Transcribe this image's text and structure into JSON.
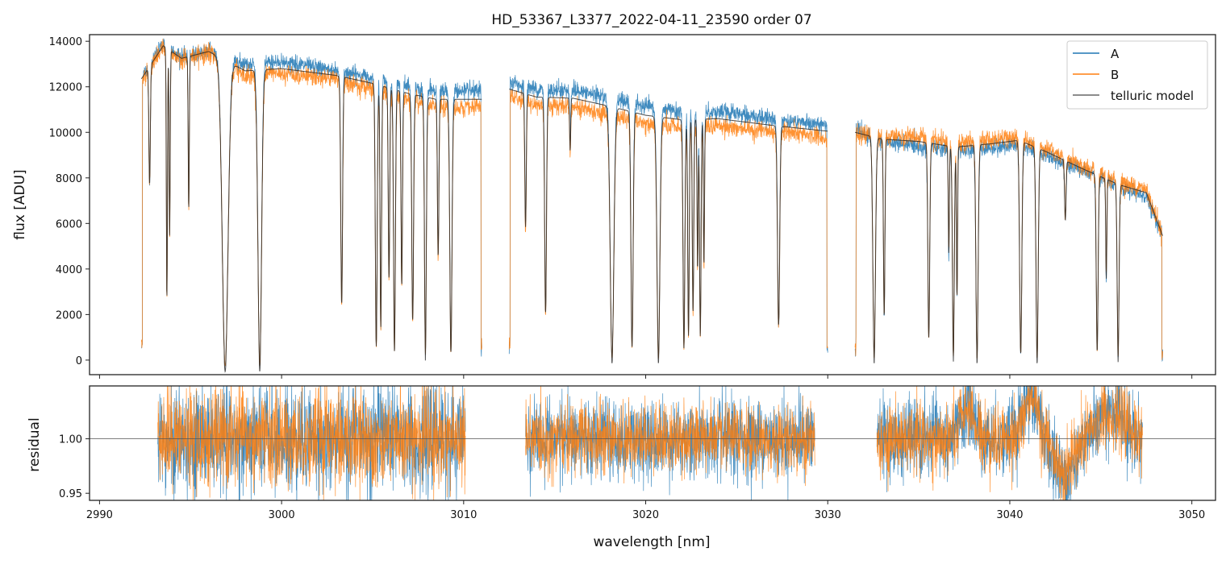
{
  "chart_data": [
    {
      "type": "line",
      "title": "HD_53367_L3377_2022-04-11_23590  order 07",
      "xlabel": "",
      "ylabel": "flux [ADU]",
      "xlim": [
        2989.45,
        3051.3
      ],
      "ylim": [
        -640,
        14290
      ],
      "yticks": [
        0,
        2000,
        4000,
        6000,
        8000,
        10000,
        12000,
        14000
      ],
      "xticks": [
        2990,
        3000,
        3010,
        3020,
        3030,
        3040,
        3050
      ],
      "legend": {
        "placement": "top-right",
        "entries": [
          "A",
          "B",
          "telluric model"
        ]
      },
      "series_colors": {
        "A": "#1f77b4",
        "B": "#ff7f0e",
        "telluric model": "#4d4d4d"
      },
      "segments_nm": [
        [
          2992.3,
          3011.0
        ],
        [
          3012.5,
          3030.0
        ],
        [
          3031.5,
          3048.4
        ]
      ],
      "continuum": {
        "x": [
          2992.3,
          2993.5,
          2994.5,
          2996,
          2998,
          3000,
          3003,
          3005,
          3007,
          3008.5,
          3011,
          3012.5,
          3014,
          3016,
          3018,
          3020,
          3022,
          3024,
          3027,
          3030,
          3031.5,
          3033,
          3035,
          3037,
          3039,
          3040.5,
          3042,
          3044,
          3046,
          3047.5,
          3048.4
        ],
        "A": [
          12400,
          13900,
          13300,
          13600,
          13000,
          13100,
          12700,
          12400,
          12000,
          11800,
          11800,
          12200,
          11900,
          11850,
          11500,
          11100,
          10900,
          10900,
          10600,
          10300,
          10100,
          9600,
          9400,
          9200,
          9300,
          9500,
          9000,
          8300,
          7600,
          7200,
          5400
        ],
        "B": [
          12300,
          13700,
          13200,
          13500,
          12500,
          12600,
          12300,
          11900,
          11400,
          11100,
          11100,
          11600,
          11200,
          11150,
          10800,
          10400,
          10200,
          10300,
          10000,
          9800,
          9900,
          9800,
          9800,
          9500,
          9700,
          9800,
          9300,
          8500,
          7800,
          7500,
          5500
        ],
        "model": [
          12350,
          13800,
          13250,
          13550,
          12700,
          12800,
          12500,
          12150,
          11700,
          11450,
          11450,
          11900,
          11550,
          11500,
          11150,
          10750,
          10550,
          10600,
          10300,
          10050,
          10000,
          9700,
          9600,
          9350,
          9500,
          9650,
          9150,
          8400,
          7700,
          7350,
          5450
        ]
      },
      "absorption_lines": [
        [
          2992.75,
          0.4,
          0.04
        ],
        [
          2993.7,
          0.8,
          0.03
        ],
        [
          2993.85,
          0.6,
          0.03
        ],
        [
          2994.9,
          0.5,
          0.03
        ],
        [
          2996.9,
          1.02,
          0.16
        ],
        [
          2998.8,
          1.02,
          0.1
        ],
        [
          3003.3,
          0.8,
          0.05
        ],
        [
          3005.2,
          0.95,
          0.05
        ],
        [
          3005.45,
          0.88,
          0.04
        ],
        [
          3005.9,
          0.7,
          0.04
        ],
        [
          3006.2,
          0.97,
          0.05
        ],
        [
          3006.6,
          0.72,
          0.04
        ],
        [
          3007.2,
          0.85,
          0.05
        ],
        [
          3007.9,
          0.98,
          0.05
        ],
        [
          3008.6,
          0.6,
          0.04
        ],
        [
          3009.3,
          0.97,
          0.06
        ],
        [
          3013.4,
          0.5,
          0.04
        ],
        [
          3014.5,
          0.82,
          0.05
        ],
        [
          3015.85,
          0.2,
          0.03
        ],
        [
          3018.15,
          0.99,
          0.1
        ],
        [
          3019.25,
          0.95,
          0.06
        ],
        [
          3020.7,
          0.99,
          0.08
        ],
        [
          3022.1,
          0.95,
          0.05
        ],
        [
          3022.35,
          0.9,
          0.04
        ],
        [
          3022.6,
          0.8,
          0.04
        ],
        [
          3022.85,
          0.62,
          0.03
        ],
        [
          3023.0,
          0.9,
          0.04
        ],
        [
          3023.2,
          0.6,
          0.03
        ],
        [
          3027.3,
          0.85,
          0.06
        ],
        [
          3032.55,
          0.99,
          0.07
        ],
        [
          3033.1,
          0.8,
          0.04
        ],
        [
          3035.55,
          0.9,
          0.05
        ],
        [
          3036.65,
          0.5,
          0.03
        ],
        [
          3036.9,
          0.98,
          0.05
        ],
        [
          3037.1,
          0.7,
          0.03
        ],
        [
          3038.2,
          0.99,
          0.06
        ],
        [
          3040.6,
          0.97,
          0.06
        ],
        [
          3041.5,
          0.99,
          0.06
        ],
        [
          3043.05,
          0.3,
          0.04
        ],
        [
          3044.8,
          0.95,
          0.05
        ],
        [
          3045.3,
          0.55,
          0.03
        ],
        [
          3045.95,
          0.98,
          0.05
        ]
      ]
    },
    {
      "type": "line",
      "xlabel": "wavelength [nm]",
      "ylabel": "residual",
      "xlim": [
        2989.45,
        3051.3
      ],
      "ylim": [
        0.9435,
        1.0485
      ],
      "yticks": [
        "0.95",
        "1.00"
      ],
      "xticks": [
        "2990",
        "3000",
        "3010",
        "3020",
        "3030",
        "3040",
        "3050"
      ],
      "reference_line": 1.0,
      "segments_nm": [
        [
          2993.2,
          3010.1
        ],
        [
          3013.4,
          3029.3
        ],
        [
          3032.7,
          3047.3
        ]
      ],
      "noise_std": {
        "A": 0.022,
        "B": 0.02
      }
    }
  ]
}
